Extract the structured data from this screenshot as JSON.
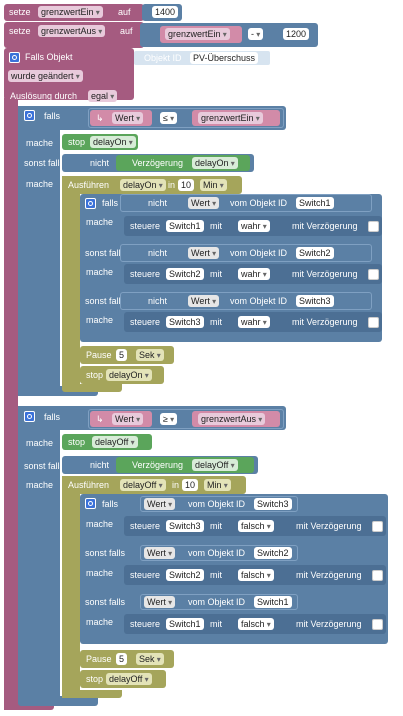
{
  "row1": {
    "setze": "setze",
    "var": "grenzwertEin",
    "auf": "auf",
    "value": "1400"
  },
  "row2": {
    "setze": "setze",
    "var": "grenzwertAus",
    "auf": "auf",
    "var2": "grenzwertEin",
    "op": "-",
    "value": "1200"
  },
  "trigger": {
    "label": "Falls Objekt",
    "objekt_id_label": "Objekt ID",
    "objekt_id": "PV-Überschuss",
    "changed": "wurde geändert",
    "ausloesung": "Auslösung durch",
    "ausloesung_value": "egal"
  },
  "block1": {
    "falls": "falls",
    "wert": "Wert",
    "cmp": "≤",
    "var": "grenzwertEin",
    "mache": "mache",
    "stop": "stop",
    "stop_var": "delayOn",
    "sonst_falls": "sonst falls",
    "nicht": "nicht",
    "verzoegerung": "Verzögerung",
    "verz_var": "delayOn",
    "mache2": "mache",
    "ausfuehren": "Ausführen",
    "exec_var": "delayOn",
    "in": "in",
    "minutes": "10",
    "unit": "Min",
    "inner": [
      {
        "falls": "falls",
        "nicht": "nicht",
        "wert": "Wert",
        "vom": "vom Objekt ID",
        "obj": "Switch1",
        "mache": "mache",
        "steuere": "steuere",
        "target": "Switch1",
        "mit": "mit",
        "val": "wahr",
        "verz": "mit Verzögerung"
      },
      {
        "falls": "sonst falls",
        "nicht": "nicht",
        "wert": "Wert",
        "vom": "vom Objekt ID",
        "obj": "Switch2",
        "mache": "mache",
        "steuere": "steuere",
        "target": "Switch2",
        "mit": "mit",
        "val": "wahr",
        "verz": "mit Verzögerung"
      },
      {
        "falls": "sonst falls",
        "nicht": "nicht",
        "wert": "Wert",
        "vom": "vom Objekt ID",
        "obj": "Switch3",
        "mache": "mache",
        "steuere": "steuere",
        "target": "Switch3",
        "mit": "mit",
        "val": "wahr",
        "verz": "mit Verzögerung"
      }
    ],
    "pause": "Pause",
    "pause_val": "5",
    "pause_unit": "Sek",
    "stop2": "stop",
    "stop2_var": "delayOn"
  },
  "block2": {
    "falls": "falls",
    "wert": "Wert",
    "cmp": "≥",
    "var": "grenzwertAus",
    "mache": "mache",
    "stop": "stop",
    "stop_var": "delayOff",
    "sonst_falls": "sonst falls",
    "nicht": "nicht",
    "verzoegerung": "Verzögerung",
    "verz_var": "delayOff",
    "mache2": "mache",
    "ausfuehren": "Ausführen",
    "exec_var": "delayOff",
    "in": "in",
    "minutes": "10",
    "unit": "Min",
    "inner": [
      {
        "falls": "falls",
        "wert": "Wert",
        "vom": "vom Objekt ID",
        "obj": "Switch3",
        "mache": "mache",
        "steuere": "steuere",
        "target": "Switch3",
        "mit": "mit",
        "val": "falsch",
        "verz": "mit Verzögerung"
      },
      {
        "falls": "sonst falls",
        "wert": "Wert",
        "vom": "vom Objekt ID",
        "obj": "Switch2",
        "mache": "mache",
        "steuere": "steuere",
        "target": "Switch2",
        "mit": "mit",
        "val": "falsch",
        "verz": "mit Verzögerung"
      },
      {
        "falls": "sonst falls",
        "wert": "Wert",
        "vom": "vom Objekt ID",
        "obj": "Switch1",
        "mache": "mache",
        "steuere": "steuere",
        "target": "Switch1",
        "mit": "mit",
        "val": "falsch",
        "verz": "mit Verzögerung"
      }
    ],
    "pause": "Pause",
    "pause_val": "5",
    "pause_unit": "Sek",
    "stop2": "stop",
    "stop2_var": "delayOff"
  }
}
